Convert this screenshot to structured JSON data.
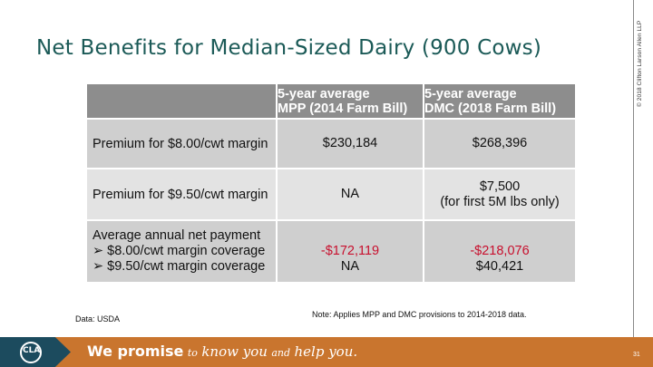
{
  "copyright": "© 2018 Clifton Larson Allen LLP",
  "title": "Net Benefits for Median-Sized Dairy (900 Cows)",
  "table": {
    "headers": [
      [
        "5-year average",
        "MPP (2014 Farm Bill)"
      ],
      [
        "5-year average",
        "DMC (2018 Farm Bill)"
      ]
    ],
    "rows": [
      {
        "label": "Premium for $8.00/cwt margin",
        "mpp": "$230,184",
        "dmc": "$268,396"
      },
      {
        "label": "Premium for $9.50/cwt margin",
        "mpp": "NA",
        "dmc": "$7,500",
        "dmc_sub": "(for first 5M lbs only)"
      },
      {
        "label": "Average annual net payment",
        "sub_items": [
          "➢ $8.00/cwt margin coverage",
          "➢ $9.50/cwt margin coverage"
        ],
        "mpp_values": [
          "-$172,119",
          "NA"
        ],
        "dmc_values": [
          "-$218,076",
          "$40,421"
        ]
      }
    ]
  },
  "data_source": "Data: USDA",
  "note": "Note: Applies MPP and DMC provisions to 2014-2018 data.",
  "footer": {
    "logo_text": "CLA",
    "slogan_bold": "We promise",
    "slogan_to": "to",
    "slogan_know": "know you",
    "slogan_and": "and",
    "slogan_help": "help you.",
    "page_number": "31"
  },
  "colors": {
    "title": "#1b5a57",
    "footer": "#c9752e",
    "negative": "#c8102e",
    "header": "#8d8d8d"
  }
}
